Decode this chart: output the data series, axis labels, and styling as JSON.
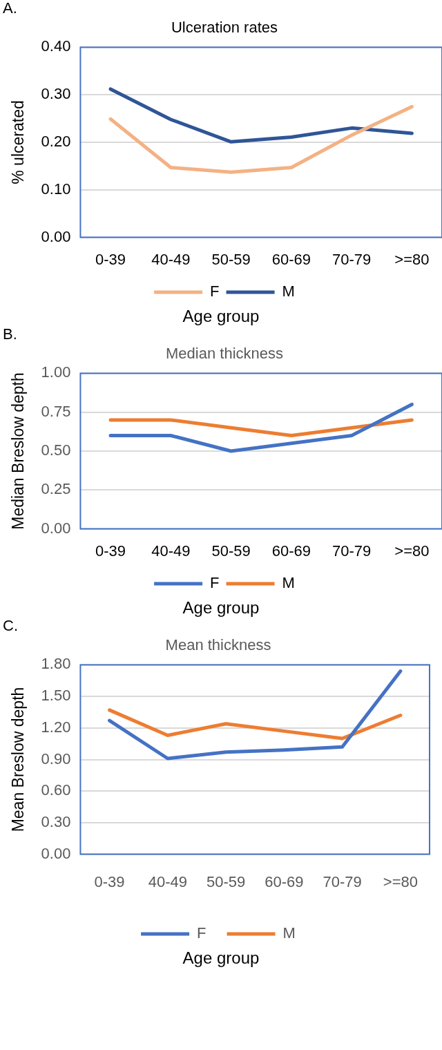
{
  "chart_data": [
    {
      "type": "line",
      "title": "Ulceration rates",
      "xlabel": "Age group",
      "ylabel": "% ulcerated",
      "annotations": [
        "A."
      ],
      "categories": [
        "0-39",
        "40-49",
        "50-59",
        "60-69",
        "70-79",
        ">=80"
      ],
      "series": [
        {
          "name": "F",
          "color": "#f4b183",
          "values": [
            0.249,
            0.147,
            0.137,
            0.147,
            0.215,
            0.275
          ]
        },
        {
          "name": "M",
          "color": "#2f5597",
          "values": [
            0.312,
            0.248,
            0.201,
            0.211,
            0.23,
            0.219
          ]
        }
      ],
      "ylim": [
        0,
        0.4
      ],
      "yticks": [
        {
          "value": 0,
          "label": "0.00"
        },
        {
          "value": 0.1,
          "label": "0.10"
        },
        {
          "value": 0.2,
          "label": "0.20"
        },
        {
          "value": 0.3,
          "label": "0.30"
        },
        {
          "value": 0.4,
          "label": "0.40"
        }
      ],
      "grid": "y",
      "legend": "bottom",
      "marker": "none",
      "line_style": "solid"
    },
    {
      "type": "line",
      "title": "Median thickness",
      "xlabel": "Age group",
      "ylabel": "Median Breslow depth",
      "annotations": [
        "B."
      ],
      "categories": [
        "0-39",
        "40-49",
        "50-59",
        "60-69",
        "70-79",
        ">=80"
      ],
      "series": [
        {
          "name": "F",
          "color": "#4472c4",
          "values": [
            0.6,
            0.6,
            0.5,
            0.55,
            0.6,
            0.8
          ]
        },
        {
          "name": "M",
          "color": "#ed7d31",
          "values": [
            0.7,
            0.7,
            0.65,
            0.6,
            0.65,
            0.7
          ]
        }
      ],
      "ylim": [
        0,
        1
      ],
      "yticks": [
        {
          "value": 0,
          "label": "0.00"
        },
        {
          "value": 0.25,
          "label": "0.25"
        },
        {
          "value": 0.5,
          "label": "0.50"
        },
        {
          "value": 0.75,
          "label": "0.75"
        },
        {
          "value": 1,
          "label": "1.00"
        }
      ],
      "grid": "y",
      "legend": "bottom",
      "marker": "none",
      "line_style": "solid"
    },
    {
      "type": "line",
      "title": "Mean thickness",
      "xlabel": "Age group",
      "ylabel": "Mean Breslow depth",
      "annotations": [
        "C."
      ],
      "categories": [
        "0-39",
        "40-49",
        "50-59",
        "60-69",
        "70-79",
        ">=80"
      ],
      "series": [
        {
          "name": "F",
          "color": "#4472c4",
          "values": [
            1.27,
            0.91,
            0.97,
            0.99,
            1.02,
            1.74
          ]
        },
        {
          "name": "M",
          "color": "#ed7d31",
          "values": [
            1.37,
            1.13,
            1.24,
            1.17,
            1.1,
            1.32
          ]
        }
      ],
      "ylim": [
        0,
        1.8
      ],
      "yticks": [
        {
          "value": 0,
          "label": "0.00"
        },
        {
          "value": 0.3,
          "label": "0.30"
        },
        {
          "value": 0.6,
          "label": "0.60"
        },
        {
          "value": 0.9,
          "label": "0.90"
        },
        {
          "value": 1.2,
          "label": "1.20"
        },
        {
          "value": 1.5,
          "label": "1.50"
        },
        {
          "value": 1.8,
          "label": "1.80"
        }
      ],
      "grid": "y",
      "legend": "bottom",
      "marker": "none",
      "line_style": "solid"
    }
  ]
}
